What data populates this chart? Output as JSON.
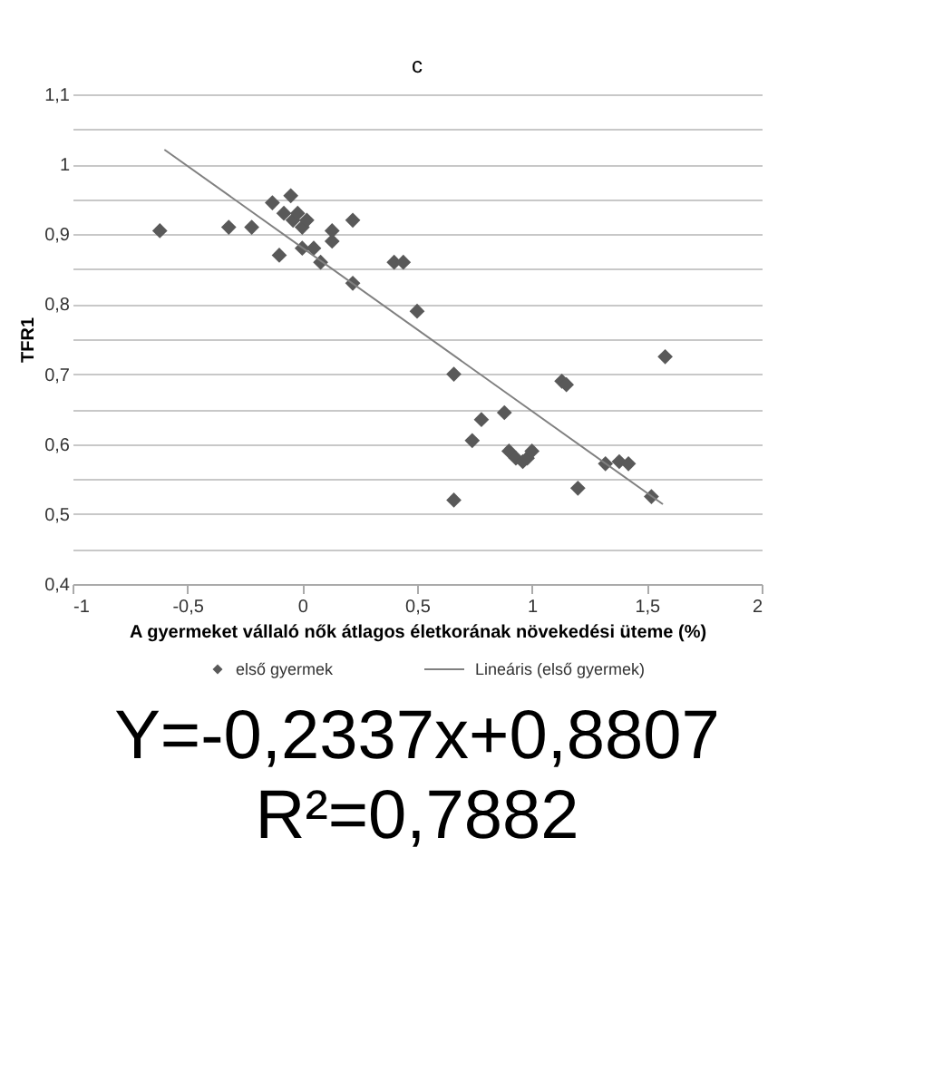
{
  "chart_data": {
    "type": "scatter",
    "title": "c",
    "xlabel": "A gyermeket vállaló nők átlagos életkorának növekedési üteme (%)",
    "ylabel": "TFR1",
    "xlim": [
      -1,
      2
    ],
    "xticks": [
      -1,
      {
        "value": -0.5,
        "label": "-0,5"
      },
      0,
      {
        "value": 0.5,
        "label": "0,5"
      },
      1,
      {
        "value": 1.5,
        "label": "1,5"
      },
      2
    ],
    "ylim": [
      0.4,
      1.1
    ],
    "yticks": [
      {
        "value": 0.4,
        "label": "0,4"
      },
      {
        "value": 0.45,
        "label": null
      },
      {
        "value": 0.5,
        "label": "0,5"
      },
      {
        "value": 0.55,
        "label": null
      },
      {
        "value": 0.6,
        "label": "0,6"
      },
      {
        "value": 0.65,
        "label": null
      },
      {
        "value": 0.7,
        "label": "0,7"
      },
      {
        "value": 0.75,
        "label": null
      },
      {
        "value": 0.8,
        "label": "0,8"
      },
      {
        "value": 0.85,
        "label": null
      },
      {
        "value": 0.9,
        "label": "0,9"
      },
      {
        "value": 0.95,
        "label": null
      },
      {
        "value": 1,
        "label": "1"
      },
      {
        "value": 1.05,
        "label": null
      },
      {
        "value": 1.1,
        "label": "1,1"
      }
    ],
    "grid": "y",
    "legend": "bottom",
    "series": [
      {
        "name": "első gyermek",
        "type": "scatter",
        "color": "#595959",
        "marker": "diamond",
        "x": [
          -0.62,
          -0.32,
          -0.22,
          -0.13,
          -0.1,
          -0.08,
          -0.05,
          -0.04,
          -0.02,
          0,
          0,
          0.02,
          0.05,
          0.08,
          0.13,
          0.13,
          0.22,
          0.22,
          0.4,
          0.44,
          0.5,
          0.66,
          0.66,
          0.74,
          0.78,
          0.88,
          0.9,
          0.93,
          0.96,
          0.98,
          1,
          1.13,
          1.15,
          1.2,
          1.32,
          1.38,
          1.42,
          1.52,
          1.58
        ],
        "values": [
          0.905,
          0.91,
          0.91,
          0.945,
          0.87,
          0.93,
          0.955,
          0.92,
          0.93,
          0.91,
          0.88,
          0.92,
          0.88,
          0.86,
          0.905,
          0.89,
          0.92,
          0.83,
          0.86,
          0.86,
          0.79,
          0.7,
          0.52,
          0.605,
          0.635,
          0.645,
          0.59,
          0.58,
          0.575,
          0.58,
          0.59,
          0.69,
          0.685,
          0.537,
          0.572,
          0.575,
          0.572,
          0.525,
          0.725
        ]
      },
      {
        "name": "Lineáris (első gyermek)",
        "type": "line",
        "color": "#808080",
        "line_style": "solid",
        "x": [
          -0.6,
          1.57
        ],
        "values": [
          1.021,
          0.514
        ]
      }
    ],
    "annotations": [
      "Y=-0,2337x+0,8807",
      "R²=0,7882"
    ]
  }
}
